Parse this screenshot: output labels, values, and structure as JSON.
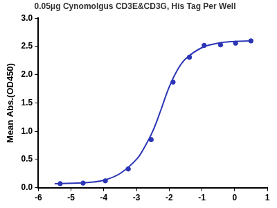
{
  "chart_data": {
    "type": "scatter",
    "title": "0.05μg Cynomolgus CD3E&CD3G, His Tag Per Well",
    "y_label": "Mean Abs.(OD450)",
    "xlim": [
      -6,
      1
    ],
    "xticks": [
      -6,
      -5,
      -4,
      -3,
      -2,
      -1,
      0,
      1
    ],
    "ylim": [
      0,
      3
    ],
    "yticks": [
      {
        "value": 0,
        "label": "0.0"
      },
      {
        "value": 0.5,
        "label": "0.5"
      },
      {
        "value": 1,
        "label": "1.0"
      },
      {
        "value": 1.5,
        "label": "1.5"
      },
      {
        "value": 2,
        "label": "2.0"
      },
      {
        "value": 2.5,
        "label": "2.5"
      },
      {
        "value": 3,
        "label": "3.0"
      }
    ],
    "grid": false,
    "series": [
      {
        "type": "scatter",
        "marker": "circle",
        "color": "#2b35b5",
        "x": [
          -5.33,
          -4.63,
          -3.95,
          -3.25,
          -2.55,
          -1.88,
          -1.38,
          -0.93,
          -0.43,
          0.03,
          0.5
        ],
        "values": [
          0.07,
          0.08,
          0.12,
          0.33,
          0.85,
          1.87,
          2.31,
          2.52,
          2.53,
          2.56,
          2.6
        ]
      },
      {
        "type": "line",
        "line_style": "solid",
        "color": "#2b35b5",
        "x": [
          -5.5,
          -4.5,
          -4,
          -3.5,
          -3,
          -2.75,
          -2.5,
          -2.25,
          -2,
          -1.75,
          -1.5,
          -1,
          -0.5,
          0,
          0.5
        ],
        "values": [
          0.07,
          0.09,
          0.13,
          0.25,
          0.5,
          0.72,
          1.0,
          1.38,
          1.78,
          2.08,
          2.28,
          2.48,
          2.56,
          2.59,
          2.6
        ]
      }
    ]
  }
}
